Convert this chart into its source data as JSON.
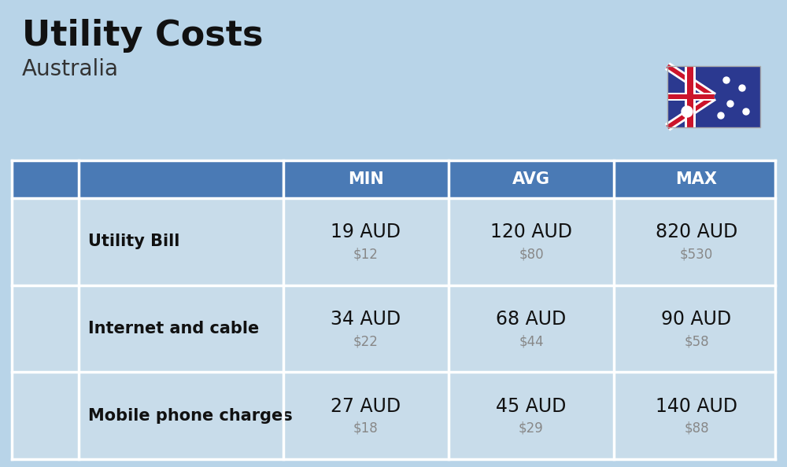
{
  "title": "Utility Costs",
  "subtitle": "Australia",
  "background_color": "#b8d4e8",
  "header_bg_color": "#4a7ab5",
  "header_text_color": "#ffffff",
  "row_bg_color": "#c8dcea",
  "table_border_color": "#ffffff",
  "col_headers": [
    "MIN",
    "AVG",
    "MAX"
  ],
  "rows": [
    {
      "label": "Utility Bill",
      "min_aud": "19 AUD",
      "min_usd": "$12",
      "avg_aud": "120 AUD",
      "avg_usd": "$80",
      "max_aud": "820 AUD",
      "max_usd": "$530"
    },
    {
      "label": "Internet and cable",
      "min_aud": "34 AUD",
      "min_usd": "$22",
      "avg_aud": "68 AUD",
      "avg_usd": "$44",
      "max_aud": "90 AUD",
      "max_usd": "$58"
    },
    {
      "label": "Mobile phone charges",
      "min_aud": "27 AUD",
      "min_usd": "$18",
      "avg_aud": "45 AUD",
      "avg_usd": "$29",
      "max_aud": "140 AUD",
      "max_usd": "$88"
    }
  ],
  "title_fontsize": 32,
  "subtitle_fontsize": 20,
  "header_fontsize": 15,
  "label_fontsize": 15,
  "value_fontsize": 17,
  "usd_fontsize": 12
}
